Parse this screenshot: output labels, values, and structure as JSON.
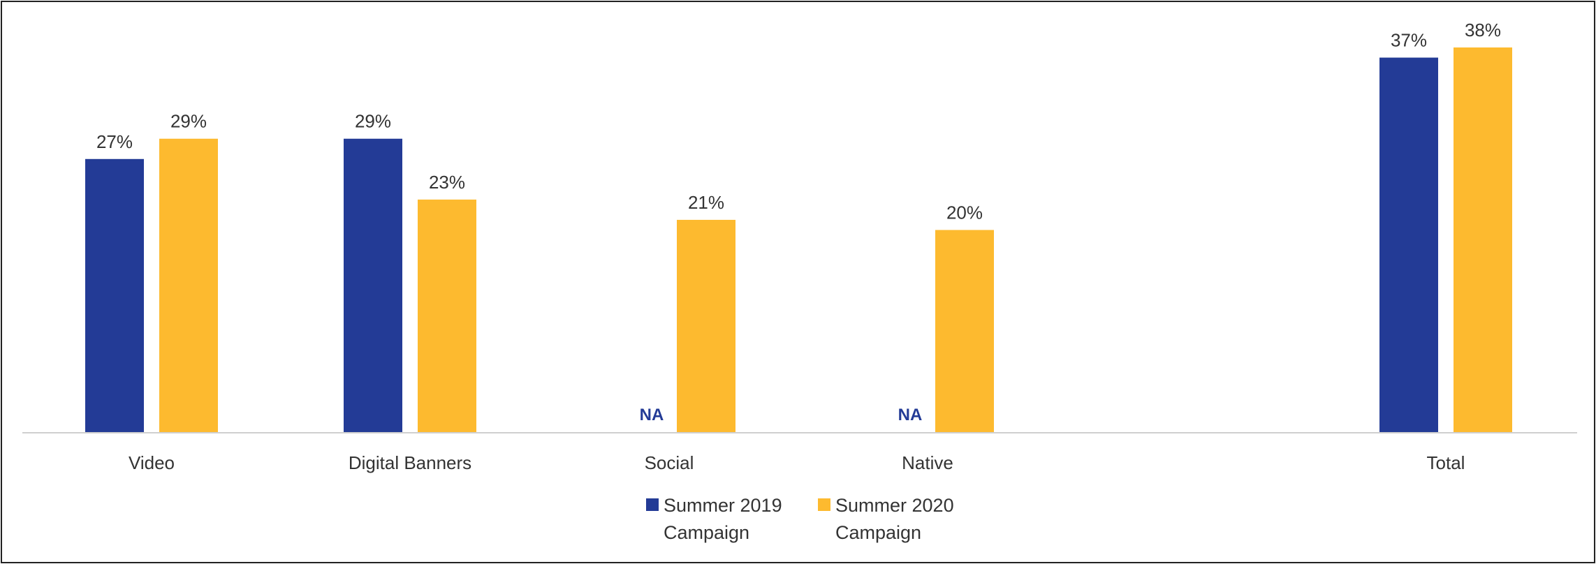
{
  "chart_data": {
    "type": "bar",
    "categories": [
      "Video",
      "Digital Banners",
      "Social",
      "Native",
      "Total"
    ],
    "series": [
      {
        "name": "Summer 2019 Campaign",
        "legend_lines": [
          "Summer 2019",
          "Campaign"
        ],
        "color": "#233B96",
        "values": [
          27,
          29,
          null,
          null,
          37
        ],
        "labels": [
          "27%",
          "29%",
          "NA",
          "NA",
          "37%"
        ]
      },
      {
        "name": "Summer 2020 Campaign",
        "legend_lines": [
          "Summer 2020",
          "Campaign"
        ],
        "color": "#FDBA2F",
        "values": [
          29,
          23,
          21,
          20,
          38
        ],
        "labels": [
          "29%",
          "23%",
          "21%",
          "20%",
          "38%"
        ]
      }
    ],
    "ylim": [
      0,
      38
    ],
    "grid": false,
    "legend": "bottom-center"
  }
}
